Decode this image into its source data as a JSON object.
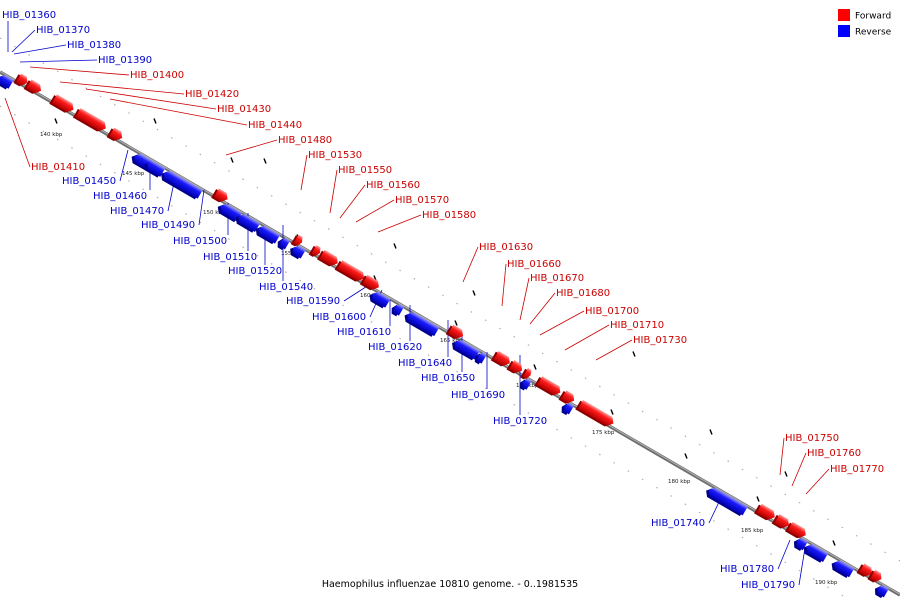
{
  "caption": "Haemophilus influenzae 10810 genome. - 0..1981535",
  "legend": [
    {
      "label": "Forward",
      "color": "#ff0000"
    },
    {
      "label": "Reverse",
      "color": "#0000ff"
    }
  ],
  "colors": {
    "forward": "#ff0000",
    "forward_line": "#cc0000",
    "forward_text": "#cc0000",
    "reverse": "#0000ff",
    "reverse_line": "#0000cc",
    "reverse_text": "#0000cc",
    "backbone": "#808080"
  },
  "scale_ticks": [
    "140 kbp",
    "145 kbp",
    "150 kbp",
    "155 kbp",
    "160 kbp",
    "165 kbp",
    "170 kbp",
    "175 kbp",
    "180 kbp",
    "185 kbp",
    "190 kbp"
  ],
  "genes": [
    {
      "name": "HIB_01360",
      "strand": "reverse"
    },
    {
      "name": "HIB_01370",
      "strand": "reverse"
    },
    {
      "name": "HIB_01380",
      "strand": "reverse"
    },
    {
      "name": "HIB_01390",
      "strand": "reverse"
    },
    {
      "name": "HIB_01400",
      "strand": "forward"
    },
    {
      "name": "HIB_01410",
      "strand": "forward"
    },
    {
      "name": "HIB_01420",
      "strand": "forward"
    },
    {
      "name": "HIB_01430",
      "strand": "forward"
    },
    {
      "name": "HIB_01440",
      "strand": "forward"
    },
    {
      "name": "HIB_01450",
      "strand": "reverse"
    },
    {
      "name": "HIB_01460",
      "strand": "reverse"
    },
    {
      "name": "HIB_01470",
      "strand": "reverse"
    },
    {
      "name": "HIB_01480",
      "strand": "forward"
    },
    {
      "name": "HIB_01490",
      "strand": "reverse"
    },
    {
      "name": "HIB_01500",
      "strand": "reverse"
    },
    {
      "name": "HIB_01510",
      "strand": "reverse"
    },
    {
      "name": "HIB_01520",
      "strand": "reverse"
    },
    {
      "name": "HIB_01530",
      "strand": "forward"
    },
    {
      "name": "HIB_01540",
      "strand": "reverse"
    },
    {
      "name": "HIB_01550",
      "strand": "forward"
    },
    {
      "name": "HIB_01560",
      "strand": "forward"
    },
    {
      "name": "HIB_01570",
      "strand": "forward"
    },
    {
      "name": "HIB_01580",
      "strand": "forward"
    },
    {
      "name": "HIB_01590",
      "strand": "reverse"
    },
    {
      "name": "HIB_01600",
      "strand": "reverse"
    },
    {
      "name": "HIB_01610",
      "strand": "reverse"
    },
    {
      "name": "HIB_01620",
      "strand": "reverse"
    },
    {
      "name": "HIB_01630",
      "strand": "forward"
    },
    {
      "name": "HIB_01640",
      "strand": "reverse"
    },
    {
      "name": "HIB_01650",
      "strand": "reverse"
    },
    {
      "name": "HIB_01660",
      "strand": "forward"
    },
    {
      "name": "HIB_01670",
      "strand": "forward"
    },
    {
      "name": "HIB_01680",
      "strand": "forward"
    },
    {
      "name": "HIB_01690",
      "strand": "reverse"
    },
    {
      "name": "HIB_01700",
      "strand": "forward"
    },
    {
      "name": "HIB_01710",
      "strand": "forward"
    },
    {
      "name": "HIB_01720",
      "strand": "reverse"
    },
    {
      "name": "HIB_01730",
      "strand": "forward"
    },
    {
      "name": "HIB_01740",
      "strand": "reverse"
    },
    {
      "name": "HIB_01750",
      "strand": "forward"
    },
    {
      "name": "HIB_01760",
      "strand": "forward"
    },
    {
      "name": "HIB_01770",
      "strand": "forward"
    },
    {
      "name": "HIB_01780",
      "strand": "reverse"
    },
    {
      "name": "HIB_01790",
      "strand": "reverse"
    }
  ]
}
